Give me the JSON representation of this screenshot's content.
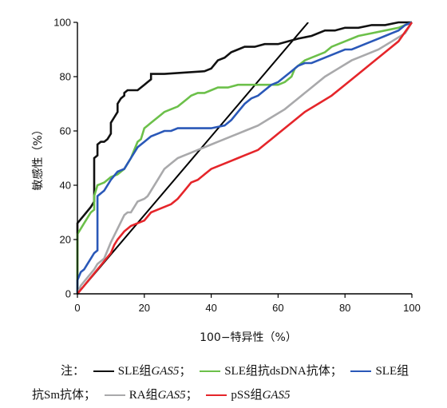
{
  "chart_data": {
    "type": "line",
    "xlabel": "100−特异性（%）",
    "ylabel": "敏感性（%）",
    "xlim": [
      0,
      100
    ],
    "ylim": [
      0,
      100
    ],
    "xticks": [
      "0",
      "20",
      "40",
      "60",
      "80",
      "100"
    ],
    "yticks": [
      "0",
      "20",
      "40",
      "60",
      "80",
      "100"
    ],
    "grid": false,
    "reference_line": {
      "x": [
        0,
        69
      ],
      "y": [
        0,
        100
      ],
      "color": "#000000"
    },
    "series": [
      {
        "name": "SLE组GAS5",
        "color": "#111111",
        "x": [
          0,
          0,
          2,
          4,
          5,
          5,
          6,
          6,
          7,
          8,
          9,
          10,
          10,
          11,
          12,
          12,
          13,
          14,
          14,
          15,
          16,
          18,
          20,
          21,
          22,
          22,
          24,
          26,
          38,
          40,
          42,
          44,
          46,
          48,
          50,
          53,
          56,
          60,
          63,
          66,
          70,
          74,
          77,
          80,
          84,
          88,
          92,
          96,
          100
        ],
        "y": [
          0,
          26,
          29,
          32,
          34,
          50,
          51,
          55,
          56,
          56,
          57,
          59,
          63,
          65,
          67,
          70,
          72,
          73,
          74,
          75,
          75,
          75,
          77,
          78,
          79,
          81,
          81,
          81,
          82,
          83,
          86,
          87,
          89,
          90,
          91,
          91,
          92,
          92,
          93,
          94,
          95,
          97,
          97,
          98,
          98,
          99,
          99,
          100,
          100
        ]
      },
      {
        "name": "SLE组抗dsDNA抗体",
        "color": "#6cc04a",
        "x": [
          0,
          0,
          1,
          2,
          4,
          5,
          5,
          6,
          8,
          9,
          10,
          12,
          14,
          16,
          17,
          18,
          19,
          20,
          21,
          22,
          24,
          25,
          26,
          28,
          30,
          32,
          33,
          34,
          36,
          38,
          40,
          42,
          45,
          48,
          52,
          56,
          60,
          62,
          63,
          64,
          65,
          66,
          68,
          70,
          72,
          74,
          76,
          78,
          80,
          84,
          88,
          92,
          96,
          100
        ],
        "y": [
          0,
          22,
          24,
          26,
          30,
          31,
          36,
          40,
          41,
          42,
          43,
          44,
          46,
          50,
          53,
          56,
          57,
          61,
          62,
          63,
          65,
          66,
          67,
          68,
          69,
          71,
          72,
          73,
          74,
          74,
          75,
          76,
          76,
          77,
          77,
          77,
          77,
          78,
          79,
          80,
          83,
          84,
          86,
          87,
          88,
          89,
          91,
          92,
          93,
          95,
          96,
          97,
          98,
          100
        ]
      },
      {
        "name": "SLE组抗Sm抗体",
        "color": "#2a58b8",
        "x": [
          0,
          0,
          1,
          2,
          3,
          4,
          5,
          6,
          6,
          8,
          10,
          12,
          14,
          15,
          16,
          17,
          18,
          20,
          22,
          24,
          26,
          28,
          30,
          34,
          40,
          44,
          46,
          48,
          50,
          52,
          54,
          56,
          58,
          60,
          62,
          64,
          66,
          68,
          70,
          72,
          76,
          80,
          82,
          84,
          86,
          88,
          90,
          92,
          94,
          96,
          98,
          100
        ],
        "y": [
          0,
          5,
          8,
          9,
          11,
          13,
          15,
          16,
          36,
          38,
          42,
          45,
          46,
          48,
          50,
          52,
          54,
          56,
          58,
          59,
          60,
          60,
          61,
          61,
          61,
          62,
          64,
          67,
          70,
          72,
          73,
          75,
          77,
          78,
          80,
          82,
          84,
          85,
          85,
          86,
          88,
          90,
          90,
          91,
          92,
          93,
          94,
          95,
          96,
          97,
          99,
          100
        ]
      },
      {
        "name": "RA组GAS5",
        "color": "#a9a9ab",
        "x": [
          0,
          1,
          3,
          5,
          6,
          8,
          9,
          10,
          12,
          14,
          15,
          16,
          18,
          20,
          21,
          22,
          24,
          26,
          28,
          30,
          32,
          34,
          36,
          38,
          40,
          42,
          44,
          46,
          48,
          50,
          54,
          58,
          62,
          66,
          70,
          74,
          78,
          82,
          86,
          90,
          94,
          98,
          100
        ],
        "y": [
          0,
          3,
          6,
          9,
          11,
          13,
          16,
          19,
          24,
          29,
          30,
          30,
          34,
          35,
          36,
          38,
          42,
          46,
          48,
          50,
          51,
          52,
          53,
          54,
          55,
          56,
          57,
          58,
          59,
          60,
          62,
          65,
          68,
          72,
          76,
          80,
          83,
          86,
          88,
          90,
          93,
          96,
          100
        ]
      },
      {
        "name": "pSS组GAS5",
        "color": "#e5252a",
        "x": [
          0,
          2,
          4,
          6,
          8,
          10,
          11,
          12,
          14,
          16,
          18,
          20,
          22,
          24,
          26,
          28,
          30,
          32,
          34,
          36,
          38,
          40,
          42,
          44,
          46,
          48,
          50,
          52,
          54,
          56,
          58,
          60,
          64,
          68,
          72,
          76,
          80,
          84,
          88,
          92,
          96,
          100
        ],
        "y": [
          0,
          3,
          6,
          9,
          12,
          15,
          18,
          20,
          23,
          25,
          26,
          27,
          30,
          31,
          32,
          33,
          35,
          38,
          41,
          42,
          44,
          46,
          47,
          48,
          49,
          50,
          51,
          52,
          53,
          55,
          57,
          59,
          63,
          67,
          70,
          73,
          77,
          81,
          85,
          89,
          93,
          100
        ]
      }
    ]
  },
  "legend": {
    "note": "注：",
    "items": [
      {
        "prefix": "SLE组",
        "italic": "GAS5",
        "suffix": "；",
        "color": "#111111"
      },
      {
        "prefix": "SLE组抗dsDNA抗体；",
        "italic": "",
        "suffix": "",
        "color": "#6cc04a"
      },
      {
        "prefix": "SLE组",
        "italic": "",
        "suffix": "",
        "color": "#2a58b8"
      },
      {
        "prefix": "抗Sm抗体；",
        "italic": "",
        "suffix": "",
        "color": ""
      },
      {
        "prefix": "RA组",
        "italic": "GAS5",
        "suffix": "；",
        "color": "#a9a9ab"
      },
      {
        "prefix": "pSS组",
        "italic": "GAS5",
        "suffix": "",
        "color": "#e5252a"
      }
    ]
  }
}
